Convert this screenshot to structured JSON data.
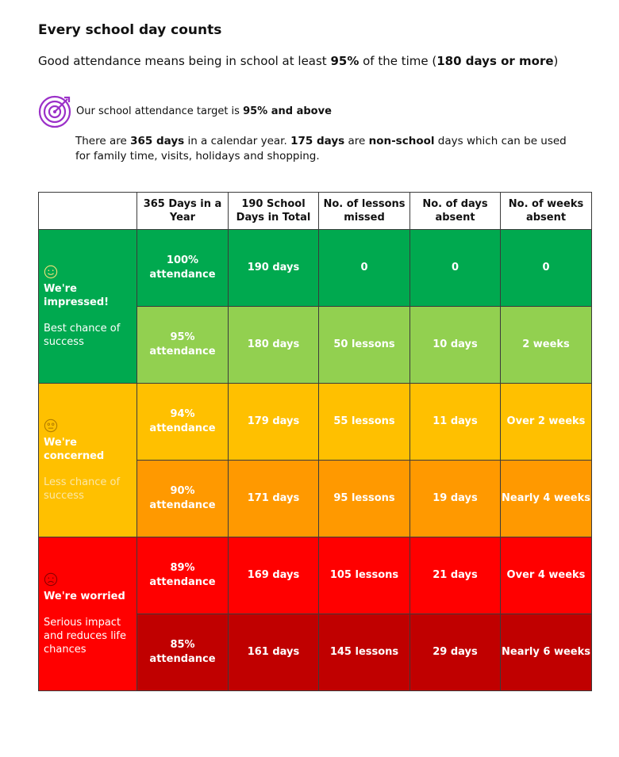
{
  "title": "Every school day counts",
  "intro": {
    "pre": "Good attendance means being in school at least ",
    "pct": "95%",
    "mid": " of the time (",
    "days": "180 days or more",
    "post": ")"
  },
  "target": {
    "pre": "Our school attendance target is ",
    "bold": "95% and above",
    "icon": "target-icon",
    "icon_color": "#9b30c8"
  },
  "days_info": {
    "p1": "There are ",
    "b1": "365 days",
    "p2": " in a calendar year. ",
    "b2": "175 days",
    "p3": " are ",
    "b3": "non-school",
    "p4": " days which can be used for family time, visits, holidays and shopping."
  },
  "table": {
    "headers": [
      "",
      "365 Days in a Year",
      "190 School Days in Total",
      "No. of lessons missed",
      "No. of days absent",
      "No. of weeks absent"
    ],
    "bands": [
      {
        "face": "happy-face-icon",
        "heading": "We're impressed!",
        "sub": "Best chance of success",
        "color": "#00a94f"
      },
      {
        "face": "neutral-face-icon",
        "heading": "We're concerned",
        "sub": "Less chance of success",
        "color": "#ffc000"
      },
      {
        "face": "sad-face-icon",
        "heading": "We're worried",
        "sub": "Serious impact and reduces life chances",
        "color": "#ff0000"
      }
    ],
    "rows": [
      {
        "attendance": "100% attendance",
        "days": "190 days",
        "lessons": "0",
        "absent": "0",
        "weeks": "0",
        "color": "#00a94f"
      },
      {
        "attendance": "95% attendance",
        "days": "180 days",
        "lessons": "50 lessons",
        "absent": "10 days",
        "weeks": "2 weeks",
        "color": "#92d050"
      },
      {
        "attendance": "94% attendance",
        "days": "179 days",
        "lessons": "55 lessons",
        "absent": "11 days",
        "weeks": "Over 2 weeks",
        "color": "#ffc000"
      },
      {
        "attendance": "90% attendance",
        "days": "171 days",
        "lessons": "95 lessons",
        "absent": "19 days",
        "weeks": "Nearly 4 weeks",
        "color": "#ff9900"
      },
      {
        "attendance": "89% attendance",
        "days": "169 days",
        "lessons": "105 lessons",
        "absent": "21 days",
        "weeks": "Over 4 weeks",
        "color": "#ff0000"
      },
      {
        "attendance": "85% attendance",
        "days": "161 days",
        "lessons": "145 lessons",
        "absent": "29 days",
        "weeks": "Nearly 6 weeks",
        "color": "#c00000"
      }
    ]
  }
}
